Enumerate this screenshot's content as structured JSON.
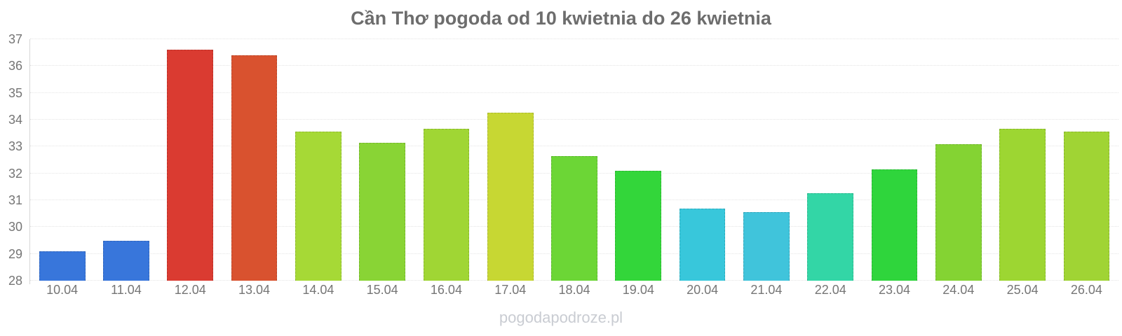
{
  "watermark": "pogodapodroze.pl",
  "colors": {
    "title": "#6D6D6D",
    "axis_label": "#757575",
    "gridline": "#E4E4E4",
    "axis_line": "#D6D6D6",
    "watermark": "#C9CCD2"
  },
  "chart_data": {
    "type": "bar",
    "title": "Cần Thơ pogoda od 10 kwietnia do 26 kwietnia",
    "categories": [
      "10.04",
      "11.04",
      "12.04",
      "13.04",
      "14.04",
      "15.04",
      "16.04",
      "17.04",
      "18.04",
      "19.04",
      "20.04",
      "21.04",
      "22.04",
      "23.04",
      "24.04",
      "25.04",
      "26.04"
    ],
    "values": [
      29.1,
      29.5,
      36.6,
      36.4,
      33.55,
      33.15,
      33.65,
      34.25,
      32.65,
      32.1,
      30.7,
      30.55,
      31.25,
      32.15,
      33.1,
      33.65,
      33.55
    ],
    "bar_colors": [
      "#3876DB",
      "#3876DB",
      "#DA3B31",
      "#D9522F",
      "#A6D936",
      "#89D435",
      "#A0D634",
      "#C7D733",
      "#6CD636",
      "#33D63A",
      "#38C7DB",
      "#40C4DB",
      "#33D6A6",
      "#2FD53C",
      "#84D333",
      "#9DD632",
      "#A0D434"
    ],
    "xlabel": "",
    "ylabel": "",
    "ylim": [
      28,
      37
    ],
    "yticks": [
      28,
      29,
      30,
      31,
      32,
      33,
      34,
      35,
      36,
      37
    ],
    "grid": true,
    "legend": false
  }
}
